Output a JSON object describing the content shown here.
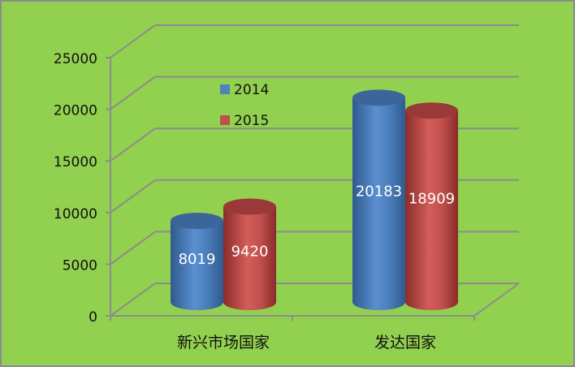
{
  "chart_data": {
    "type": "bar",
    "style": "3d-cylinder",
    "title": "",
    "xlabel": "",
    "ylabel": "",
    "categories": [
      "新兴市场国家",
      "发达国家"
    ],
    "series": [
      {
        "name": "2014",
        "color": "#4F81BD",
        "values": [
          8019,
          20183
        ]
      },
      {
        "name": "2015",
        "color": "#C0504D",
        "values": [
          9420,
          18909
        ]
      }
    ],
    "yticks": [
      "0",
      "5000",
      "10000",
      "15000",
      "20000",
      "25000"
    ],
    "ylim": [
      0,
      25000
    ],
    "grid": true,
    "legend_position": "top-left-inside",
    "background_color": "#92D050",
    "data_labels": true
  }
}
